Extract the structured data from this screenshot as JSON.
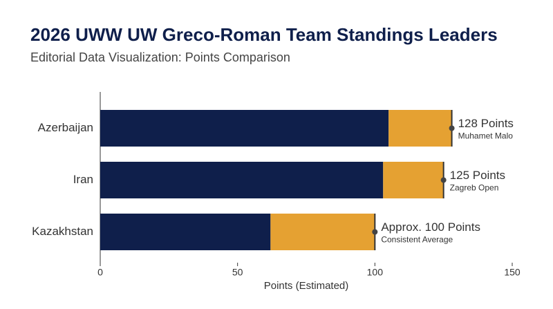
{
  "chart_data": {
    "type": "stacked-bar-horizontal",
    "title": "2026 UWW UW Greco-Roman Team Standings Leaders",
    "subtitle": "Editorial Data Visualization: Points Comparison",
    "x_label": "Points (Estimated)",
    "categories": [
      "Azerbaijan",
      "Iran",
      "Kazakhstan"
    ],
    "series": [
      {
        "color": "#0f1f4b",
        "values": [
          105,
          103,
          62
        ]
      },
      {
        "color": "#e5a132",
        "values": [
          23,
          22,
          38
        ]
      }
    ],
    "totals": [
      128,
      125,
      100
    ],
    "total_labels": [
      "128 Points",
      "125 Points",
      "Approx. 100 Points"
    ],
    "notes": [
      "Muhamet Malo",
      "Zagreb Open",
      "Consistent Average"
    ],
    "xlim": [
      0,
      150
    ],
    "xticks": [
      0,
      50,
      100,
      150
    ]
  }
}
